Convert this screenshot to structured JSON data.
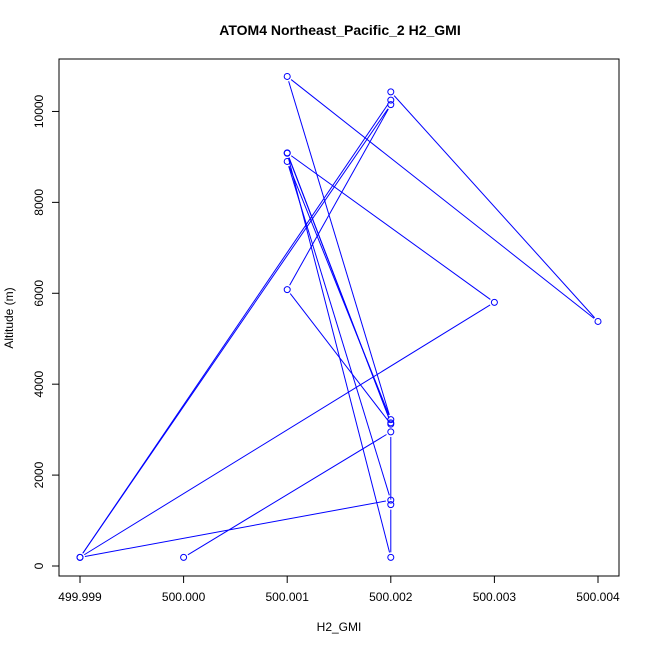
{
  "chart_data": {
    "type": "line",
    "title": "ATOM4 Northeast_Pacific_2 H2_GMI",
    "xlabel": "H2_GMI",
    "ylabel": "Altitude (m)",
    "xlim": [
      499.999,
      500.004
    ],
    "ylim": [
      0,
      11000
    ],
    "x_ticks": [
      499.999,
      500.0,
      500.001,
      500.002,
      500.003,
      500.004
    ],
    "x_tick_labels": [
      "499.999",
      "500.000",
      "500.001",
      "500.002",
      "500.003",
      "500.004"
    ],
    "y_ticks": [
      0,
      2000,
      4000,
      6000,
      8000,
      10000
    ],
    "y_tick_labels": [
      "0",
      "2000",
      "4000",
      "6000",
      "8000",
      "10000"
    ],
    "grid": false,
    "legend": "none",
    "colors": {
      "series": "#0000ff",
      "axes": "#000000"
    },
    "series": [
      {
        "x": [
          500.0,
          500.002,
          500.002,
          500.002,
          500.001,
          500.002,
          500.001,
          500.003,
          499.999,
          500.002,
          500.002,
          500.004,
          500.001,
          500.002,
          500.001,
          500.002,
          499.999,
          500.002,
          500.001,
          500.002
        ],
        "y": [
          190,
          2950,
          1350,
          190,
          9080,
          3150,
          9090,
          5800,
          190,
          10250,
          10430,
          5380,
          10770,
          3220,
          8900,
          1450,
          190,
          10150,
          6080,
          3120
        ]
      }
    ]
  }
}
